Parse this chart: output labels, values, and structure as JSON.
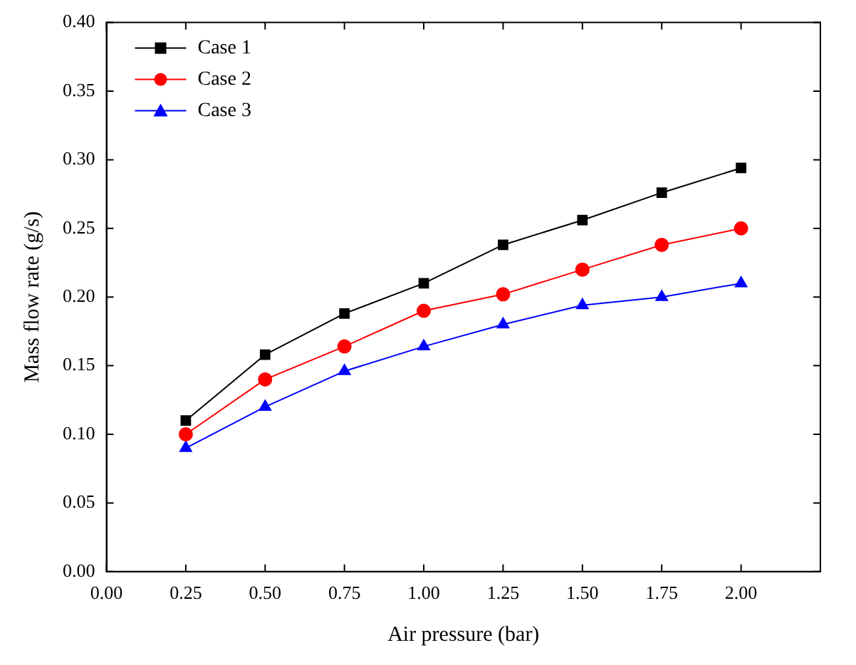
{
  "chart_data": {
    "type": "line",
    "xlabel": "Air pressure (bar)",
    "ylabel": "Mass flow rate (g/s)",
    "x": [
      0.25,
      0.5,
      0.75,
      1.0,
      1.25,
      1.5,
      1.75,
      2.0
    ],
    "xlim": [
      0,
      2.25
    ],
    "xticks": [
      {
        "value": 0,
        "label": "0.00"
      },
      {
        "value": 0.25,
        "label": "0.25"
      },
      {
        "value": 0.5,
        "label": "0.50"
      },
      {
        "value": 0.75,
        "label": "0.75"
      },
      {
        "value": 1,
        "label": "1.00"
      },
      {
        "value": 1.25,
        "label": "1.25"
      },
      {
        "value": 1.5,
        "label": "1.50"
      },
      {
        "value": 1.75,
        "label": "1.75"
      },
      {
        "value": 2,
        "label": "2.00"
      }
    ],
    "ylim": [
      0,
      0.4
    ],
    "yticks": [
      {
        "value": 0,
        "label": "0.00"
      },
      {
        "value": 0.05,
        "label": "0.05"
      },
      {
        "value": 0.1,
        "label": "0.10"
      },
      {
        "value": 0.15,
        "label": "0.15"
      },
      {
        "value": 0.2,
        "label": "0.20"
      },
      {
        "value": 0.25,
        "label": "0.25"
      },
      {
        "value": 0.3,
        "label": "0.30"
      },
      {
        "value": 0.35,
        "label": "0.35"
      },
      {
        "value": 0.4,
        "label": "0.40"
      }
    ],
    "grid": false,
    "legend": "top left",
    "line_style": "solid",
    "series": [
      {
        "name": "Case 1",
        "color": "#000000",
        "marker": "square",
        "values": [
          0.11,
          0.158,
          0.188,
          0.21,
          0.238,
          0.256,
          0.276,
          0.294
        ]
      },
      {
        "name": "Case 2",
        "color": "#ff0000",
        "marker": "circle",
        "values": [
          0.1,
          0.14,
          0.164,
          0.19,
          0.202,
          0.22,
          0.238,
          0.25
        ]
      },
      {
        "name": "Case 3",
        "color": "#0000ff",
        "marker": "triangle",
        "values": [
          0.09,
          0.12,
          0.146,
          0.164,
          0.18,
          0.194,
          0.2,
          0.21
        ]
      }
    ]
  }
}
